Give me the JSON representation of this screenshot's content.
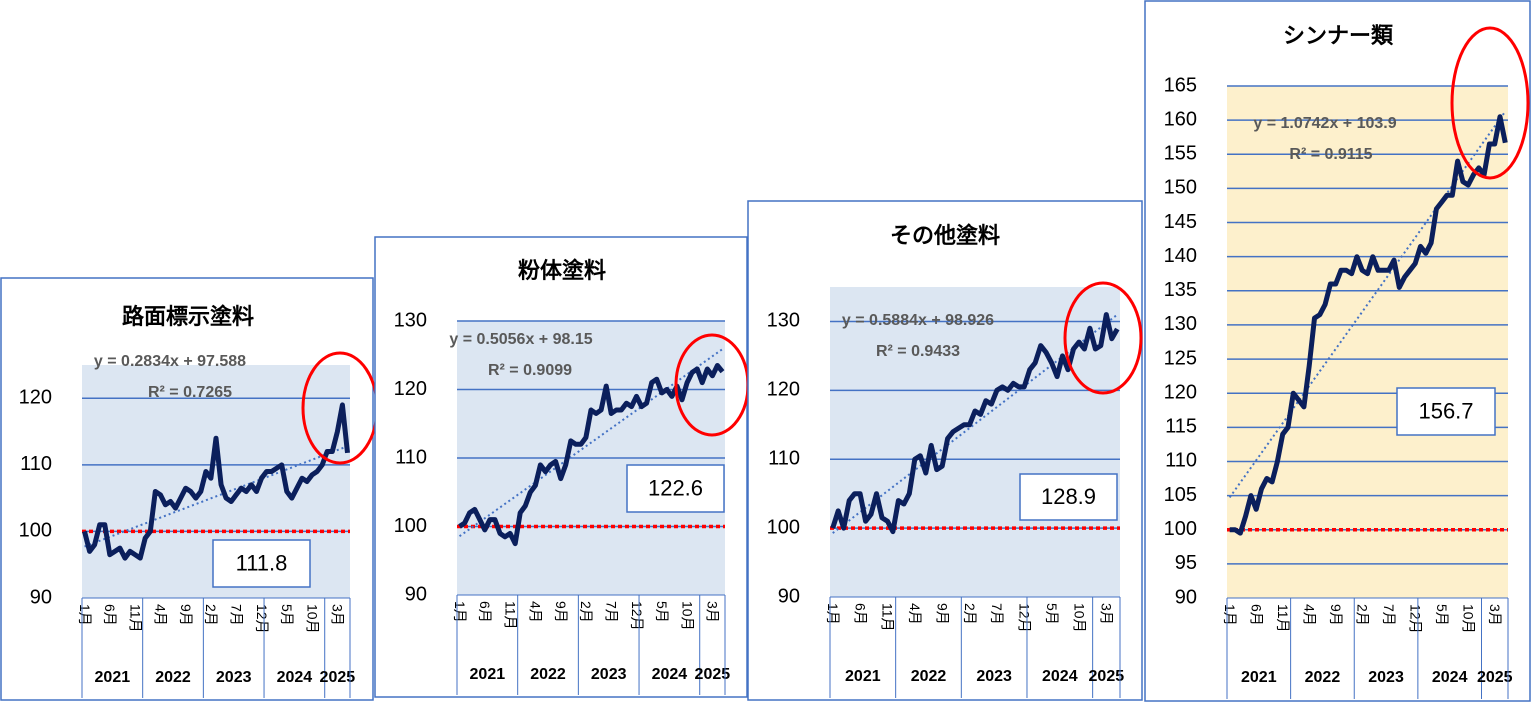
{
  "chart_data": [
    {
      "type": "line",
      "title": "路面標示塗料",
      "categories": [
        "1月",
        null,
        null,
        null,
        null,
        "6月",
        null,
        null,
        null,
        null,
        "11月",
        null,
        null,
        null,
        null,
        "4月",
        null,
        null,
        null,
        null,
        "9月",
        null,
        null,
        null,
        null,
        "2月",
        null,
        null,
        null,
        null,
        "7月",
        null,
        null,
        null,
        null,
        "12月",
        null,
        null,
        null,
        null,
        "5月",
        null,
        null,
        null,
        null,
        "10月",
        null,
        null,
        null,
        null,
        "3月",
        null,
        null
      ],
      "year_groups": [
        "2021",
        "2022",
        "2023",
        "2024",
        "2025"
      ],
      "values": [
        100,
        97,
        98,
        101,
        101,
        96.5,
        97,
        97.5,
        96,
        97,
        96.5,
        96,
        99,
        100,
        106,
        105.5,
        104,
        104.5,
        103.5,
        105,
        106.5,
        106,
        105,
        106,
        109,
        108,
        114,
        107,
        105,
        104.5,
        105.5,
        106.5,
        106,
        107,
        106,
        108,
        109,
        109,
        109.5,
        110,
        106,
        105,
        106.5,
        108,
        107.5,
        108.5,
        109,
        110,
        112,
        112,
        115,
        119,
        111.8
      ],
      "color": "#0b1f5c",
      "trend_color": "#4472c4",
      "trend_equation": "y = 0.2834x + 97.588",
      "trend_r2": "R² = 0.7265",
      "baseline": 100,
      "baseline_color": "#ff0000",
      "value_box": 111.8,
      "plot_bg": "#dce6f2",
      "grid": true,
      "ylim": [
        90,
        125
      ],
      "yticks": [
        90,
        100,
        110,
        120
      ]
    },
    {
      "type": "line",
      "title": "粉体塗料",
      "categories": [
        "1月",
        null,
        null,
        null,
        null,
        "6月",
        null,
        null,
        null,
        null,
        "11月",
        null,
        null,
        null,
        null,
        "4月",
        null,
        null,
        null,
        null,
        "9月",
        null,
        null,
        null,
        null,
        "2月",
        null,
        null,
        null,
        null,
        "7月",
        null,
        null,
        null,
        null,
        "12月",
        null,
        null,
        null,
        null,
        "5月",
        null,
        null,
        null,
        null,
        "10月",
        null,
        null,
        null,
        null,
        "3月",
        null,
        null
      ],
      "year_groups": [
        "2021",
        "2022",
        "2023",
        "2024",
        "2025"
      ],
      "values": [
        100,
        100.5,
        102,
        102.5,
        101,
        99.5,
        101,
        101,
        99,
        98.5,
        99,
        97.5,
        102,
        103,
        105,
        106,
        109,
        108,
        109,
        109.5,
        107,
        109,
        112.5,
        112,
        112,
        113,
        117,
        116.5,
        117,
        120.5,
        116.5,
        117,
        117,
        118,
        117.5,
        119,
        117.5,
        118,
        121,
        121.5,
        119.5,
        120,
        119,
        120.5,
        118.5,
        121,
        122.5,
        123,
        121,
        123,
        122,
        123.5,
        122.6
      ],
      "color": "#0b1f5c",
      "trend_color": "#4472c4",
      "trend_equation": "y = 0.5056x + 98.15",
      "trend_r2": "R² = 0.9099",
      "baseline": 100,
      "baseline_color": "#ff0000",
      "value_box": 122.6,
      "plot_bg": "#dce6f2",
      "grid": true,
      "ylim": [
        90,
        130
      ],
      "yticks": [
        90,
        100,
        110,
        120,
        130
      ]
    },
    {
      "type": "line",
      "title": "その他塗料",
      "categories": [
        "1月",
        null,
        null,
        null,
        null,
        "6月",
        null,
        null,
        null,
        null,
        "11月",
        null,
        null,
        null,
        null,
        "4月",
        null,
        null,
        null,
        null,
        "9月",
        null,
        null,
        null,
        null,
        "2月",
        null,
        null,
        null,
        null,
        "7月",
        null,
        null,
        null,
        null,
        "12月",
        null,
        null,
        null,
        null,
        "5月",
        null,
        null,
        null,
        null,
        "10月",
        null,
        null,
        null,
        null,
        "3月",
        null,
        null
      ],
      "year_groups": [
        "2021",
        "2022",
        "2023",
        "2024",
        "2025"
      ],
      "values": [
        100,
        102.5,
        100,
        104,
        105,
        105,
        101,
        102,
        105,
        101.5,
        101,
        99.5,
        104,
        103.5,
        105,
        110,
        110.5,
        108,
        112,
        108.5,
        109,
        113,
        114,
        114.5,
        115,
        115,
        117,
        116.5,
        118.5,
        118,
        120,
        120.5,
        120,
        121,
        120.5,
        120.5,
        123,
        124,
        126.5,
        125.5,
        124,
        122,
        125,
        123,
        126,
        127,
        126,
        129,
        126,
        126.5,
        131,
        127.5,
        128.9
      ],
      "color": "#0b1f5c",
      "trend_color": "#4472c4",
      "trend_equation": "y = 0.5884x + 98.926",
      "trend_r2": "R² = 0.9433",
      "baseline": 100,
      "baseline_color": "#ff0000",
      "value_box": 128.9,
      "plot_bg": "#dce6f2",
      "grid": true,
      "ylim": [
        90,
        135
      ],
      "yticks": [
        90,
        100,
        110,
        120,
        130
      ]
    },
    {
      "type": "line",
      "title": "シンナー類",
      "categories": [
        "1月",
        null,
        null,
        null,
        null,
        "6月",
        null,
        null,
        null,
        null,
        "11月",
        null,
        null,
        null,
        null,
        "4月",
        null,
        null,
        null,
        null,
        "9月",
        null,
        null,
        null,
        null,
        "2月",
        null,
        null,
        null,
        null,
        "7月",
        null,
        null,
        null,
        null,
        "12月",
        null,
        null,
        null,
        null,
        "5月",
        null,
        null,
        null,
        null,
        "10月",
        null,
        null,
        null,
        null,
        "3月",
        null,
        null
      ],
      "year_groups": [
        "2021",
        "2022",
        "2023",
        "2024",
        "2025"
      ],
      "values": [
        100,
        100,
        99.5,
        102,
        105,
        103,
        106,
        107.5,
        107,
        110,
        114,
        115,
        120,
        119,
        118,
        124,
        131,
        131.5,
        133,
        136,
        136,
        138,
        138,
        137.5,
        140,
        138,
        137.5,
        140,
        138,
        138,
        138,
        139.5,
        135.5,
        137,
        138,
        139,
        141.5,
        140.5,
        142,
        147,
        148,
        149,
        149,
        154,
        151,
        150.5,
        152,
        153,
        152,
        156.5,
        156.5,
        160.5,
        156.7
      ],
      "color": "#0b1f5c",
      "trend_color": "#4472c4",
      "trend_equation": "y = 1.0742x + 103.9",
      "trend_r2": "R² = 0.9115",
      "baseline": 100,
      "baseline_color": "#ff0000",
      "value_box": 156.7,
      "plot_bg": "#fdf0cc",
      "grid": true,
      "ylim": [
        90,
        165
      ],
      "yticks": [
        90,
        95,
        100,
        105,
        110,
        115,
        120,
        125,
        130,
        135,
        140,
        145,
        150,
        155,
        160,
        165
      ]
    }
  ]
}
